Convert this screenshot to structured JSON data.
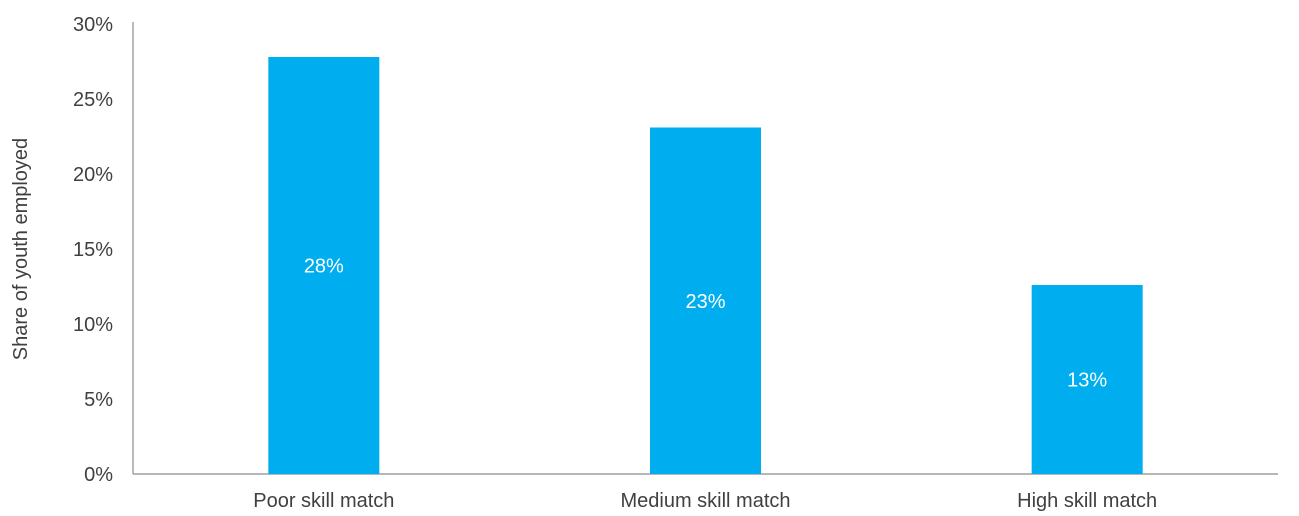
{
  "chart_data": {
    "type": "bar",
    "categories": [
      "Poor skill match",
      "Medium skill match",
      "High skill match"
    ],
    "values": [
      28,
      23,
      13
    ],
    "plotted_values": [
      27.8,
      23.1,
      12.6
    ],
    "data_labels": [
      "28%",
      "23%",
      "13%"
    ],
    "title": "",
    "xlabel": "",
    "ylabel": "Share of youth employed",
    "ylim": [
      0,
      30
    ],
    "yticks": [
      0,
      5,
      10,
      15,
      20,
      25,
      30
    ],
    "ytick_labels": [
      "0%",
      "5%",
      "10%",
      "15%",
      "20%",
      "25%",
      "30%"
    ],
    "grid": false,
    "legend": "none",
    "bar_color": "#00AEEF",
    "label_color": "#FFFFFF",
    "text_color": "#404040",
    "axis_color": "#8C8C8C"
  }
}
